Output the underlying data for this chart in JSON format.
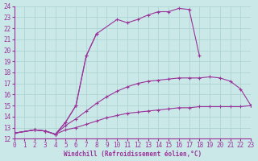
{
  "background_color": "#cbe8e8",
  "line_color": "#993399",
  "grid_color": "#a8d0cc",
  "xlabel": "Windchill (Refroidissement éolien,°C)",
  "tick_fontsize": 5.5,
  "xlim": [
    0,
    23
  ],
  "ylim": [
    12,
    24
  ],
  "yticks": [
    12,
    13,
    14,
    15,
    16,
    17,
    18,
    19,
    20,
    21,
    22,
    23,
    24
  ],
  "xticks": [
    0,
    1,
    2,
    3,
    4,
    5,
    6,
    7,
    8,
    9,
    10,
    11,
    12,
    13,
    14,
    15,
    16,
    17,
    18,
    19,
    20,
    21,
    22,
    23
  ],
  "series": [
    {
      "x": [
        0,
        2,
        3,
        4,
        5,
        6,
        7,
        8
      ],
      "y": [
        12.5,
        12.8,
        12.7,
        12.4,
        13.5,
        15.0,
        19.5,
        21.5
      ]
    },
    {
      "x": [
        0,
        2,
        3,
        4,
        5,
        6,
        7,
        8,
        10,
        11,
        12,
        13,
        14,
        15,
        16,
        17,
        18
      ],
      "y": [
        12.5,
        12.8,
        12.7,
        12.4,
        13.5,
        15.0,
        19.5,
        21.5,
        22.8,
        22.5,
        22.8,
        23.2,
        23.5,
        23.5,
        23.8,
        23.7,
        19.5
      ]
    },
    {
      "x": [
        0,
        2,
        3,
        4,
        5,
        6,
        7,
        8,
        9,
        10,
        11,
        12,
        13,
        14,
        15,
        16,
        17,
        18,
        19,
        20,
        21,
        22,
        23
      ],
      "y": [
        12.5,
        12.8,
        12.7,
        12.4,
        13.2,
        13.8,
        14.5,
        15.2,
        15.8,
        16.3,
        16.7,
        17.0,
        17.2,
        17.3,
        17.4,
        17.5,
        17.5,
        17.5,
        17.6,
        17.5,
        17.2,
        16.5,
        15.0
      ]
    },
    {
      "x": [
        0,
        2,
        3,
        4,
        5,
        6,
        7,
        8,
        9,
        10,
        11,
        12,
        13,
        14,
        15,
        16,
        17,
        18,
        19,
        20,
        21,
        22,
        23
      ],
      "y": [
        12.5,
        12.8,
        12.7,
        12.4,
        12.8,
        13.0,
        13.3,
        13.6,
        13.9,
        14.1,
        14.3,
        14.4,
        14.5,
        14.6,
        14.7,
        14.8,
        14.8,
        14.9,
        14.9,
        14.9,
        14.9,
        14.9,
        15.0
      ]
    }
  ]
}
